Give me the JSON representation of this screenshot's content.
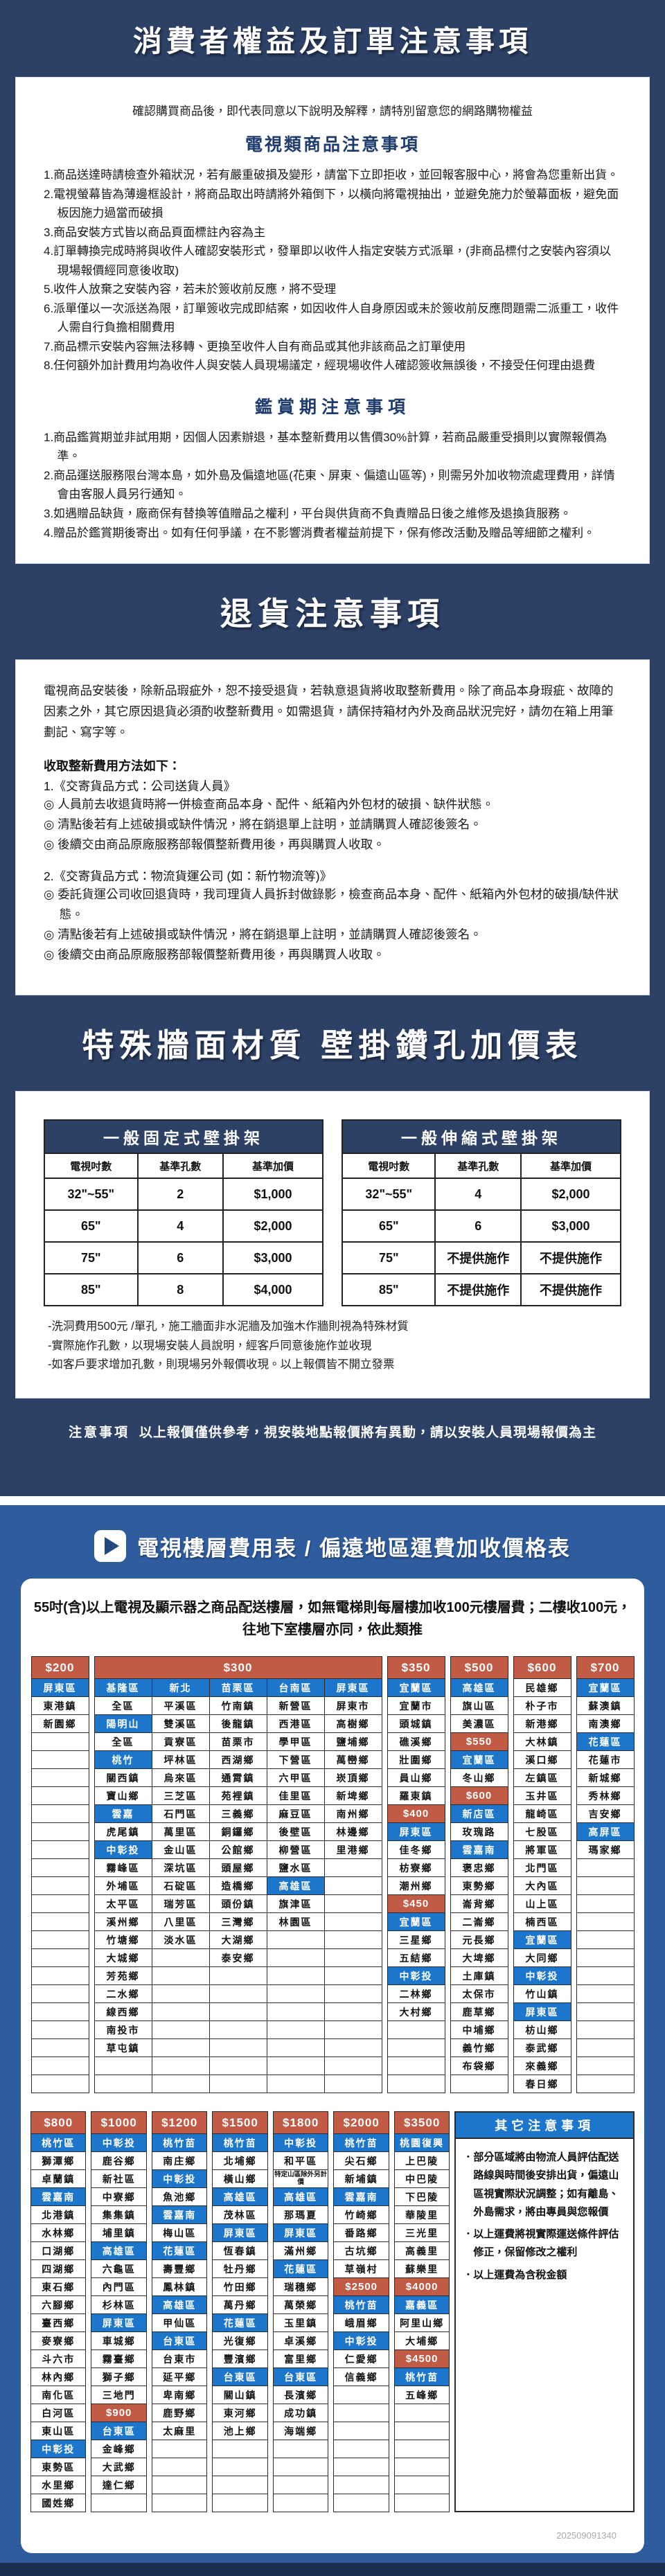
{
  "colors": {
    "navy_bg": "#2d4166",
    "bright_blue_bg": "#2e5c9e",
    "cell_blue": "#1b76cc",
    "cell_red": "#c25b45",
    "heading_blue": "#1f3c6e",
    "bottom_bar": "#1c2e4f"
  },
  "sec_consumer": {
    "title": "消費者權益及訂單注意事項",
    "intro": "確認購買商品後，即代表同意以下說明及解釋，請特別留意您的網路購物權益",
    "tv_heading": "電視類商品注意事項",
    "tv_items": [
      "1.商品送達時請檢查外箱狀況，若有嚴重破損及變形，請當下立即拒收，並回報客服中心，將會為您重新出貨。",
      "2.電視螢幕皆為薄邊框設計，將商品取出時請將外箱倒下，以橫向將電視抽出，並避免施力於螢幕面板，避免面板因施力過當而破損",
      "3.商品安裝方式皆以商品頁面標註內容為主",
      "4.訂單轉換完成時將與收件人確認安裝形式，發單即以收件人指定安裝方式派單，(非商品標付之安裝內容須以現場報價經同意後收取)",
      "5.收件人放棄之安裝內容，若未於簽收前反應，將不受理",
      "6.派單僅以一次派送為限，訂單簽收完成即結案，如因收件人自身原因或未於簽收前反應問題需二派重工，收件人需自行負擔相關費用",
      "7.商品標示安裝內容無法移轉、更換至收件人自有商品或其他非該商品之訂單使用",
      "8.任何額外加計費用均為收件人與安裝人員現場議定，經現場收件人確認簽收無誤後，不接受任何理由退費"
    ],
    "appreciation_heading": "鑑賞期注意事項",
    "appreciation_items": [
      "1.商品鑑賞期並非試用期，因個人因素辦退，基本整新費用以售價30%計算，若商品嚴重受損則以實際報價為準。",
      "2.商品運送服務限台灣本島，如外島及偏遠地區(花東、屏東、偏遠山區等)，則需另外加收物流處理費用，詳情會由客服人員另行通知。",
      "3.如遇贈品缺貨，廠商保有替換等值贈品之權利，平台與供貨商不負責贈品日後之維修及退換貨服務。",
      "4.贈品於鑑賞期後寄出。如有任何爭議，在不影響消費者權益前提下，保有修改活動及贈品等細節之權利。"
    ]
  },
  "sec_return": {
    "title": "退貨注意事項",
    "paragraph": "電視商品安裝後，除新品瑕疵外，恕不接受退貨，若執意退貨將收取整新費用。除了商品本身瑕疵、故障的因素之外，其它原因退貨必須酌收整新費用。如需退貨，請保持箱材內外及商品狀況完好，請勿在箱上用筆劃記、寫字等。",
    "method_heading": "收取整新費用方法如下：",
    "methods": [
      {
        "label": "1.《交寄貨品方式：公司送貨人員》",
        "points": [
          "人員前去收退貨時將一併檢查商品本身、配件、紙箱內外包材的破損、缺件狀態。",
          "清點後若有上述破損或缺件情況，將在銷退單上註明，並請購買人確認後簽名。",
          "後續交由商品原廠服務部報價整新費用後，再與購買人收取。"
        ]
      },
      {
        "label": "2.《交寄貨品方式：物流貨運公司 (如：新竹物流等)》",
        "points": [
          "委託貨運公司收回退貨時，我司理貨人員拆封做錄影，檢查商品本身、配件、紙箱內外包材的破損/缺件狀態。",
          "清點後若有上述破損或缺件情況，將在銷退單上註明，並請購買人確認後簽名。",
          "後續交由商品原廠服務部報價整新費用後，再與購買人收取。"
        ]
      }
    ]
  },
  "sec_wallmount": {
    "title": "特殊牆面材質 壁掛鑽孔加價表",
    "tables": [
      {
        "caption": "一般固定式壁掛架",
        "headers": [
          "電視吋數",
          "基準孔數",
          "基準加價"
        ],
        "rows": [
          [
            "32\"~55\"",
            "2",
            "$1,000"
          ],
          [
            "65\"",
            "4",
            "$2,000"
          ],
          [
            "75\"",
            "6",
            "$3,000"
          ],
          [
            "85\"",
            "8",
            "$4,000"
          ]
        ]
      },
      {
        "caption": "一般伸縮式壁掛架",
        "headers": [
          "電視吋數",
          "基準孔數",
          "基準加價"
        ],
        "rows": [
          [
            "32\"~55\"",
            "4",
            "$2,000"
          ],
          [
            "65\"",
            "6",
            "$3,000"
          ],
          [
            "75\"",
            "不提供施作",
            "不提供施作"
          ],
          [
            "85\"",
            "不提供施作",
            "不提供施作"
          ]
        ]
      }
    ],
    "footnotes": [
      "-洗洞費用500元 /單孔，施工牆面非水泥牆及加強木作牆則視為特殊材質",
      "-實際施作孔數，以現場安裝人員說明，經客戶同意後施作並收現",
      "-如客戶要求增加孔數，則現場另外報價收現。以上報價皆不開立發票"
    ],
    "notice_label": "注意事項",
    "notice_text": "以上報價僅供參考，視安裝地點報價將有異動，請以安裝人員現場報價為主"
  },
  "sec_shipping": {
    "title": "電視樓層費用表 / 偏遠地區運費加收價格表",
    "intro1": "55吋(含)以上電視及顯示器之商品配送樓層，如無電梯則每層樓加收100元樓層費；二樓收100元，",
    "intro2": "往地下室樓層亦同，依此類推",
    "block1": [
      {
        "h": "$200",
        "cols": [
          [
            "b:屏東區",
            "東港鎮",
            "新園鄉",
            "",
            "",
            "",
            "",
            "",
            "",
            "",
            "",
            "",
            "",
            "",
            "",
            "",
            "",
            "",
            "",
            "",
            "",
            "",
            ""
          ]
        ]
      },
      {
        "h": "$300",
        "cols": [
          [
            "b:基隆區",
            "全區",
            "b:陽明山",
            "全區",
            "b:桃竹",
            "關西鎮",
            "寶山鄉",
            "b:雲嘉",
            "虎尾鎮",
            "b:中彰投",
            "霧峰區",
            "外埔區",
            "太平區",
            "溪州鄉",
            "竹塘鄉",
            "大城鄉",
            "芳苑鄉",
            "二水鄉",
            "線西鄉",
            "南投市",
            "草屯鎮",
            "",
            ""
          ],
          [
            "b:新北",
            "平溪區",
            "雙溪區",
            "貢寮區",
            "坪林區",
            "烏來區",
            "三芝區",
            "石門區",
            "萬里區",
            "金山區",
            "深坑區",
            "石碇區",
            "瑞芳區",
            "八里區",
            "淡水區",
            "",
            "",
            "",
            "",
            "",
            "",
            "",
            ""
          ],
          [
            "b:苗栗區",
            "竹南鎮",
            "後龍鎮",
            "苗栗市",
            "西湖鄉",
            "通霄鎮",
            "苑裡鎮",
            "三義鄉",
            "銅鑼鄉",
            "公館鄉",
            "頭屋鄉",
            "造橋鄉",
            "頭份鎮",
            "三灣鄉",
            "大湖鄉",
            "泰安鄉",
            "",
            "",
            "",
            "",
            "",
            "",
            ""
          ],
          [
            "b:台南區",
            "新營區",
            "西港區",
            "學甲區",
            "下營區",
            "六甲區",
            "佳里區",
            "麻豆區",
            "後壁區",
            "柳營區",
            "鹽水區",
            "b:高雄區",
            "旗津區",
            "林園區",
            "",
            "",
            "",
            "",
            "",
            "",
            "",
            "",
            ""
          ],
          [
            "b:屏東區",
            "屏東市",
            "高樹鄉",
            "鹽埔鄉",
            "萬巒鄉",
            "崁頂鄉",
            "新埤鄉",
            "南州鄉",
            "林邊鄉",
            "里港鄉",
            "",
            "",
            "",
            "",
            "",
            "",
            "",
            "",
            "",
            "",
            "",
            "",
            ""
          ]
        ]
      },
      {
        "h": "$350",
        "cols": [
          [
            "b:宜蘭區",
            "宜蘭市",
            "頭城鎮",
            "礁溪鄉",
            "壯圍鄉",
            "員山鄉",
            "羅東鎮",
            "$400",
            "b:屏東區",
            "佳冬鄉",
            "枋寮鄉",
            "潮州鄉",
            "$450",
            "b:宜蘭區",
            "三星鄉",
            "五結鄉",
            "b:中彰投",
            "二林鄉",
            "大村鄉",
            "",
            "",
            "",
            ""
          ]
        ]
      },
      {
        "h": "$500",
        "cols": [
          [
            "b:高雄區",
            "旗山區",
            "美濃區",
            "$550",
            "b:宜蘭區",
            "冬山鄉",
            "$600",
            "b:新店區",
            "玫瑰路",
            "b:雲嘉南",
            "褒忠鄉",
            "東勢鄉",
            "崙背鄉",
            "二崙鄉",
            "元長鄉",
            "大埤鄉",
            "土庫鎮",
            "太保市",
            "鹿草鄉",
            "中埔鄉",
            "義竹鄉",
            "布袋鄉",
            ""
          ]
        ]
      },
      {
        "h": "$600",
        "cols": [
          [
            "民雄鄉",
            "朴子市",
            "新港鄉",
            "大林鎮",
            "溪口鄉",
            "左鎮區",
            "玉井區",
            "龍崎區",
            "七股區",
            "將軍區",
            "北門區",
            "大內區",
            "山上區",
            "楠西區",
            "b:宜蘭區",
            "大同鄉",
            "b:中彰投",
            "竹山鎮",
            "b:屏東區",
            "枋山鄉",
            "泰武鄉",
            "來義鄉",
            "春日鄉"
          ]
        ]
      },
      {
        "h": "$700",
        "cols": [
          [
            "b:宜蘭區",
            "蘇澳鎮",
            "南澳鄉",
            "b:花蓮區",
            "花蓮市",
            "新城鄉",
            "秀林鄉",
            "吉安鄉",
            "b:高屏區",
            "瑪家鄉",
            "",
            "",
            "",
            "",
            "",
            "",
            "",
            "",
            "",
            "",
            "",
            "",
            ""
          ]
        ]
      }
    ],
    "block2": [
      {
        "h": "$800",
        "cols": [
          [
            "b:桃竹區",
            "獅潭鄉",
            "卓蘭鎮",
            "b:雲嘉南",
            "北港鎮",
            "水林鄉",
            "口湖鄉",
            "四湖鄉",
            "東石鄉",
            "六腳鄉",
            "臺西鄉",
            "麥寮鄉",
            "斗六市",
            "林內鄉",
            "南化區",
            "白河區",
            "東山區",
            "b:中彰投",
            "東勢區",
            "水里鄉",
            "國姓鄉"
          ]
        ]
      },
      {
        "h": "$1000",
        "cols": [
          [
            "b:中彰投",
            "鹿谷鄉",
            "新社區",
            "中寮鄉",
            "集集鎮",
            "埔里鎮",
            "b:高雄區",
            "六龜區",
            "內門區",
            "杉林區",
            "b:屏東區",
            "車城鄉",
            "霧臺鄉",
            "獅子鄉",
            "三地門",
            "$900",
            "b:台東區",
            "金峰鄉",
            "大武鄉",
            "達仁鄉",
            ""
          ]
        ]
      },
      {
        "h": "$1200",
        "cols": [
          [
            "b:桃竹苗",
            "南庄鄉",
            "b:中彰投",
            "魚池鄉",
            "b:雲嘉南",
            "梅山區",
            "b:花蓮區",
            "壽豐鄉",
            "鳳林鎮",
            "b:高雄區",
            "甲仙區",
            "b:台東區",
            "台東市",
            "延平鄉",
            "卑南鄉",
            "鹿野鄉",
            "太麻里",
            "",
            "",
            "",
            ""
          ]
        ]
      },
      {
        "h": "$1500",
        "cols": [
          [
            "b:桃竹苗",
            "北埔鄉",
            "橫山鄉",
            "b:高雄區",
            "茂林區",
            "b:屏東區",
            "恆春鎮",
            "牡丹鄉",
            "竹田鄉",
            "萬丹鄉",
            "b:花蓮區",
            "光復鄉",
            "豐濱鄉",
            "b:台東區",
            "關山鎮",
            "東河鄉",
            "池上鄉",
            "",
            "",
            "",
            ""
          ]
        ]
      },
      {
        "h": "$1800",
        "cols": [
          [
            "b:中彰投",
            "和平區",
            "s:特定山區除外另計價",
            "b:高雄區",
            "那瑪夏",
            "b:屏東區",
            "滿州鄉",
            "b:花蓮區",
            "瑞穗鄉",
            "萬榮鄉",
            "玉里鎮",
            "卓溪鄉",
            "富里鄉",
            "b:台東區",
            "長濱鄉",
            "成功鎮",
            "海端鄉",
            "",
            "",
            "",
            ""
          ]
        ]
      },
      {
        "h": "$2000",
        "cols": [
          [
            "b:桃竹苗",
            "尖石鄉",
            "新埔鎮",
            "b:雲嘉南",
            "竹崎鄉",
            "番路鄉",
            "古坑鄉",
            "草嶺村",
            "$2500",
            "b:桃竹苗",
            "峨眉鄉",
            "b:中彰投",
            "仁愛鄉",
            "信義鄉",
            "",
            "",
            "",
            "",
            "",
            "",
            ""
          ]
        ]
      },
      {
        "h": "$3500",
        "cols": [
          [
            "b:桃園復興",
            "上巴陵",
            "中巴陵",
            "下巴陵",
            "華陵里",
            "三光里",
            "高義里",
            "蘇樂里",
            "$4000",
            "b:嘉義區",
            "阿里山鄉",
            "大埔鄉",
            "$4500",
            "b:桃竹苗",
            "五峰鄉",
            "",
            "",
            "",
            "",
            "",
            ""
          ]
        ]
      }
    ],
    "other_notes": {
      "title": "其它注意事項",
      "items": [
        "．部分區域將由物流人員評估配送路線與時間後安排出貨，偏遠山區視實際狀況調整；如有離島、外島需求，將由專員與您報價",
        "．以上運費將視實際運送條件評估修正，保留修改之權利",
        "．以上運費為含稅金額"
      ]
    },
    "doc_id": "202509091340"
  }
}
